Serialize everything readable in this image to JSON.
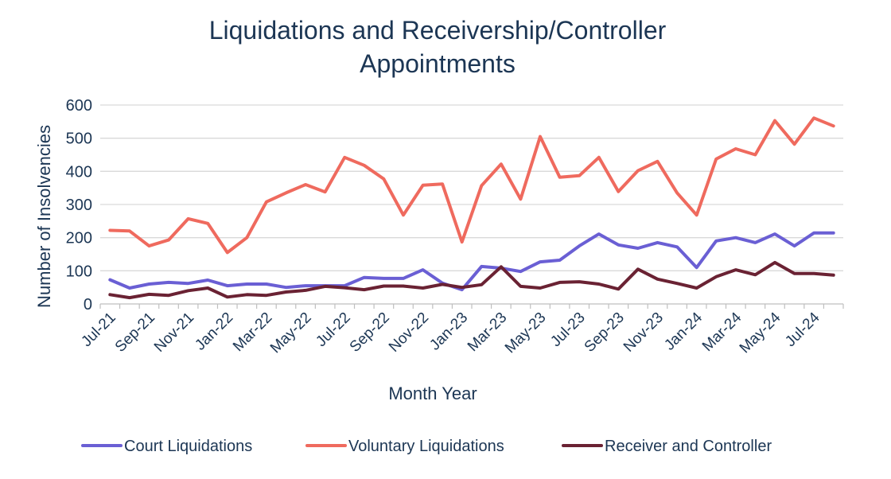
{
  "chart_data": {
    "type": "line",
    "title_line1": "Liquidations and Receivership/Controller",
    "title_line2": "Appointments",
    "xlabel": "Month Year",
    "ylabel": "Number of Insolvencies",
    "ylim": [
      0,
      600
    ],
    "yticks": [
      "0",
      "100",
      "200",
      "300",
      "400",
      "500",
      "600"
    ],
    "grid": true,
    "legend_position": "bottom",
    "categories": [
      "Jul-21",
      "Aug-21",
      "Sep-21",
      "Oct-21",
      "Nov-21",
      "Dec-21",
      "Jan-22",
      "Feb-22",
      "Mar-22",
      "Apr-22",
      "May-22",
      "Jun-22",
      "Jul-22",
      "Aug-22",
      "Sep-22",
      "Oct-22",
      "Nov-22",
      "Dec-22",
      "Jan-23",
      "Feb-23",
      "Mar-23",
      "Apr-23",
      "May-23",
      "Jun-23",
      "Jul-23",
      "Aug-23",
      "Sep-23",
      "Oct-23",
      "Nov-23",
      "Dec-23",
      "Jan-24",
      "Feb-24",
      "Mar-24",
      "Apr-24",
      "May-24",
      "Jun-24",
      "Jul-24",
      "Aug-24"
    ],
    "tick_labels": [
      "Jul-21",
      "Sep-21",
      "Nov-21",
      "Jan-22",
      "Mar-22",
      "May-22",
      "Jul-22",
      "Sep-22",
      "Nov-22",
      "Jan-23",
      "Mar-23",
      "May-23",
      "Jul-23",
      "Sep-23",
      "Nov-23",
      "Jan-24",
      "Mar-24",
      "May-24",
      "Jul-24"
    ],
    "series": [
      {
        "name": "Court Liquidations",
        "color": "#6a5fd4",
        "values": [
          73,
          48,
          60,
          65,
          62,
          72,
          55,
          60,
          60,
          50,
          55,
          55,
          55,
          80,
          77,
          77,
          103,
          63,
          43,
          113,
          108,
          98,
          127,
          132,
          175,
          211,
          178,
          168,
          185,
          172,
          110,
          190,
          200,
          185,
          211,
          175,
          214,
          214
        ]
      },
      {
        "name": "Voluntary Liquidations",
        "color": "#ef6a5e",
        "values": [
          222,
          220,
          175,
          193,
          257,
          243,
          155,
          200,
          308,
          335,
          360,
          338,
          442,
          418,
          377,
          268,
          358,
          362,
          187,
          357,
          422,
          316,
          505,
          382,
          387,
          442,
          339,
          402,
          430,
          335,
          268,
          437,
          468,
          450,
          553,
          482,
          561,
          537
        ]
      },
      {
        "name": "Receiver and Controller",
        "color": "#6a2233",
        "values": [
          28,
          19,
          29,
          26,
          40,
          48,
          21,
          28,
          26,
          36,
          41,
          53,
          49,
          43,
          54,
          54,
          48,
          59,
          50,
          58,
          112,
          53,
          48,
          65,
          67,
          60,
          45,
          105,
          75,
          62,
          48,
          82,
          103,
          88,
          125,
          92,
          92,
          87
        ]
      }
    ]
  }
}
